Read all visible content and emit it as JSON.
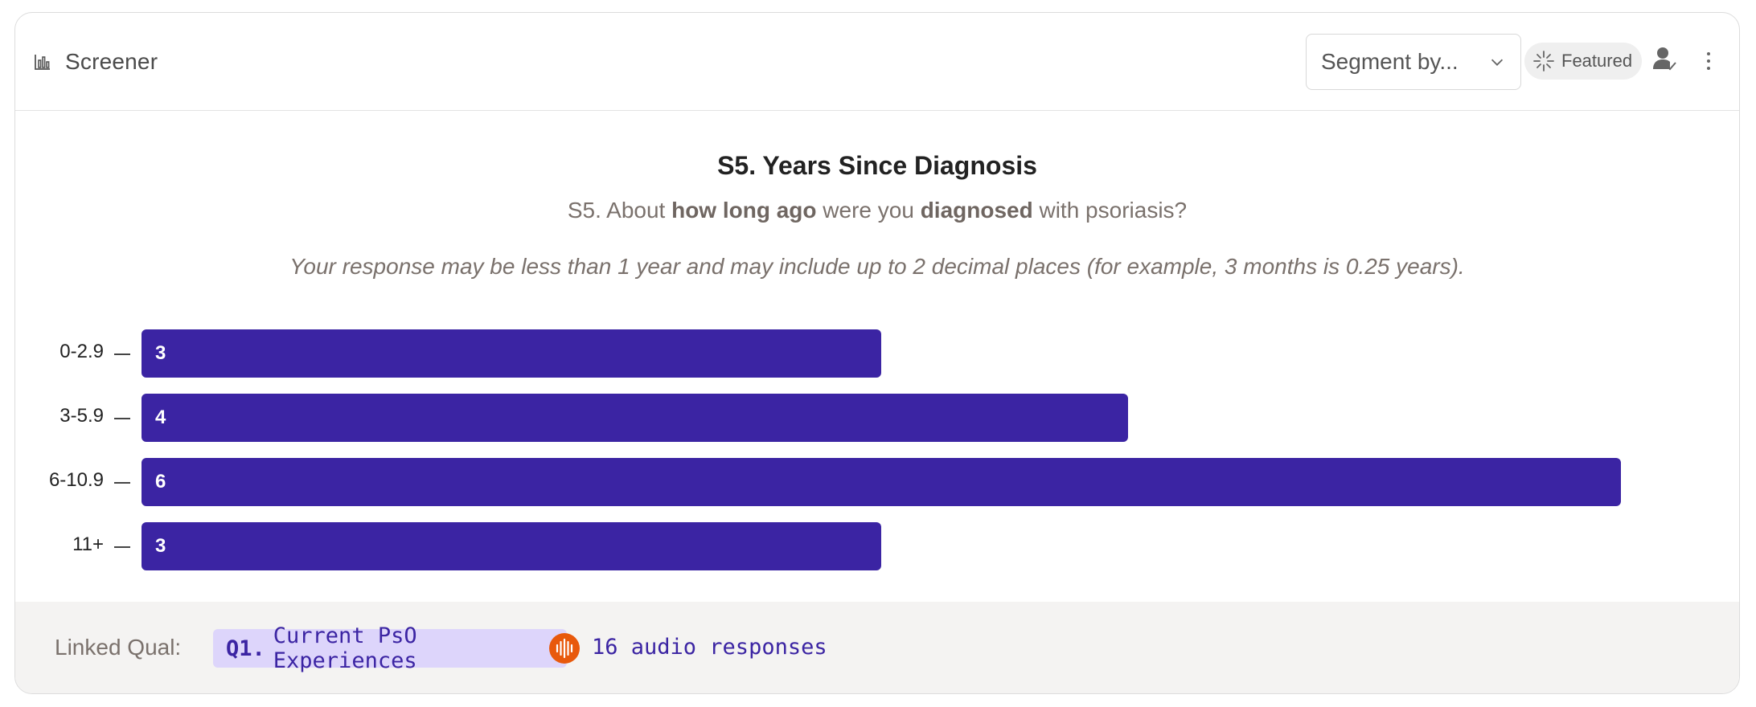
{
  "header": {
    "title": "Screener",
    "segment_placeholder": "Segment by...",
    "featured_label": "Featured"
  },
  "question": {
    "title": "S5. Years Since Diagnosis",
    "text_parts": [
      "S5. About ",
      "how long ago",
      " were you ",
      "diagnosed",
      " with psoriasis?"
    ],
    "instruction": "Your response may be less than 1 year and may include up to 2 decimal places (for example, 3 months is 0.25 years)."
  },
  "chart_data": {
    "type": "bar",
    "orientation": "horizontal",
    "categories": [
      "0-2.9",
      "3-5.9",
      "6-10.9",
      "11+"
    ],
    "values": [
      3,
      4,
      6,
      3
    ],
    "xlim": [
      0,
      6
    ],
    "bar_color": "#3b24a3"
  },
  "footer": {
    "linked_label": "Linked Qual:",
    "qual_id": "Q1.",
    "qual_title": "Current PsO Experiences",
    "audio_count": "16 audio responses",
    "audio_badge_color": "#e8590c"
  },
  "icons": {
    "title": "bar-chart-icon",
    "segment": "chevron-down-icon",
    "featured": "sparkle-icon",
    "user": "user-check-icon",
    "more": "more-vertical-icon",
    "audio": "audio-waveform-icon"
  }
}
